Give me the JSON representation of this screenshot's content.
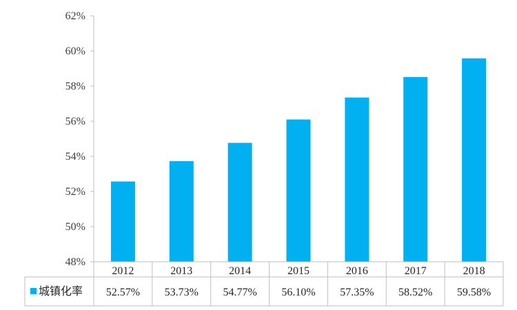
{
  "colors": {
    "bar": "#00b0f0",
    "axis": "#bfbfbf",
    "text": "#262626"
  },
  "chart_data": {
    "type": "bar",
    "categories": [
      "2012",
      "2013",
      "2014",
      "2015",
      "2016",
      "2017",
      "2018"
    ],
    "series": [
      {
        "name": "城镇化率",
        "values": [
          52.57,
          53.73,
          54.77,
          56.1,
          57.35,
          58.52,
          59.58
        ],
        "labels": [
          "52.57%",
          "53.73%",
          "54.77%",
          "56.10%",
          "57.35%",
          "58.52%",
          "59.58%"
        ]
      }
    ],
    "ylim": [
      48,
      62
    ],
    "yticks": [
      "48%",
      "50%",
      "52%",
      "54%",
      "56%",
      "58%",
      "60%",
      "62%"
    ],
    "ytick_values": [
      48,
      50,
      52,
      54,
      56,
      58,
      60,
      62
    ],
    "grid": false,
    "legend": "data-table-row-header",
    "data_table": true
  }
}
